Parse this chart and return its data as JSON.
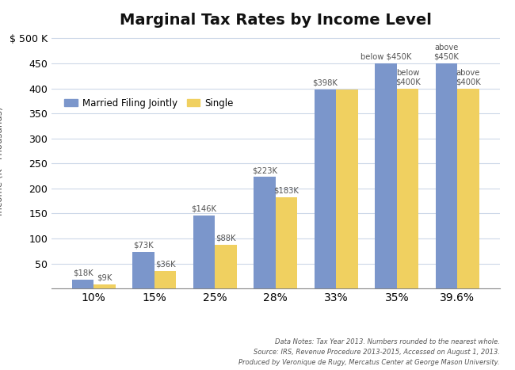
{
  "title": "Marginal Tax Rates by Income Level",
  "ylabel": "Income (K=Thousands)",
  "categories": [
    "10%",
    "15%",
    "25%",
    "28%",
    "33%",
    "35%",
    "39.6%"
  ],
  "married_values": [
    18,
    73,
    146,
    223,
    398,
    450,
    450
  ],
  "single_values": [
    9,
    36,
    88,
    183,
    398,
    400,
    400
  ],
  "married_color": "#7b96cb",
  "single_color": "#f0d060",
  "bar_labels_married": [
    "$18K",
    "$73K",
    "$146K",
    "$223K",
    "$398K",
    "below $450K",
    "above\n$450K"
  ],
  "bar_labels_single": [
    "$9K",
    "$36K",
    "$88K",
    "$183K",
    null,
    "below\n$400K",
    "above\n$400K"
  ],
  "ylim": [
    0,
    510
  ],
  "yticks": [
    0,
    50,
    100,
    150,
    200,
    250,
    300,
    350,
    400,
    450,
    500
  ],
  "ytick_labels": [
    "",
    "50",
    "100",
    "150",
    "200",
    "250",
    "300",
    "350",
    "400",
    "450",
    "$ 500 K"
  ],
  "footer_lines": [
    "Data Notes: Tax Year 2013. Numbers rounded to the nearest whole.",
    "Source: IRS, Revenue Procedure 2013-2015, Accessed on August 1, 2013.",
    "Produced by Veronique de Rugy, Mercatus Center at George Mason University."
  ],
  "background_color": "#ffffff",
  "grid_color": "#cdd8e8",
  "legend_labels": [
    "Married Filing Jointly",
    "Single"
  ],
  "bar_width": 0.36,
  "label_fontsize": 7.2,
  "title_fontsize": 14,
  "axis_label_fontsize": 8.5,
  "tick_fontsize": 9
}
